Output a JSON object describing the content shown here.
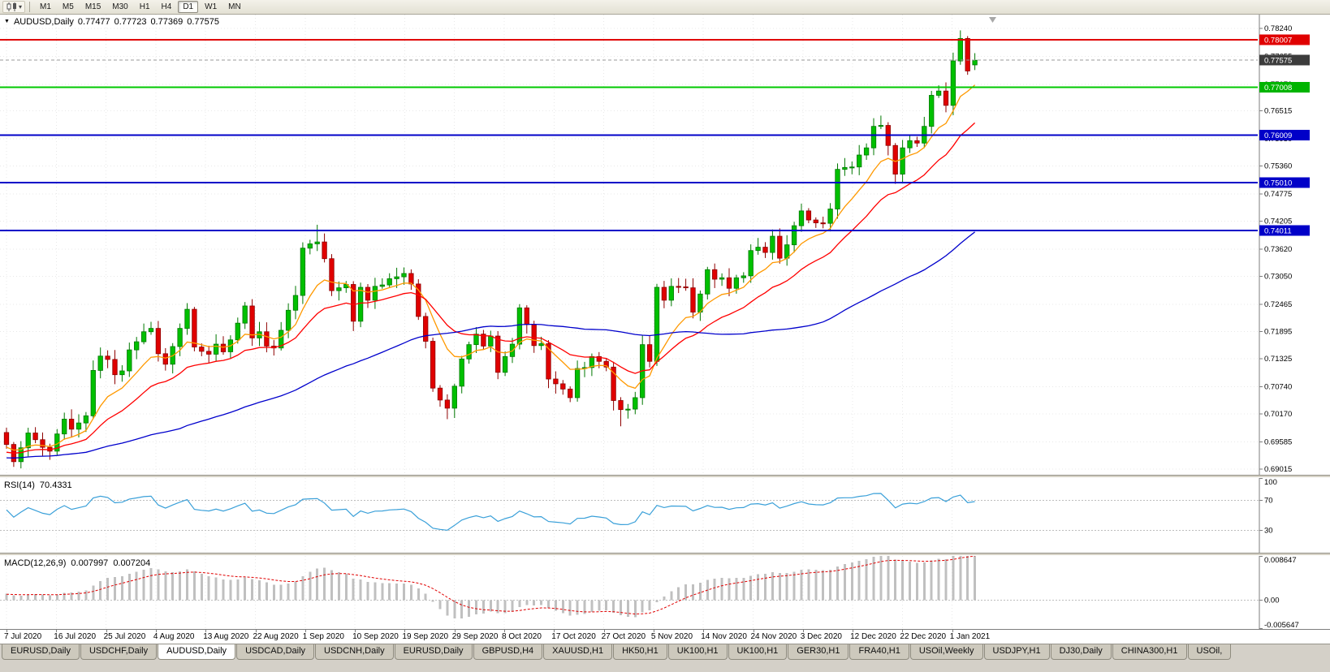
{
  "toolbar": {
    "timeframes": [
      "M1",
      "M5",
      "M15",
      "M30",
      "H1",
      "H4",
      "D1",
      "W1",
      "MN"
    ],
    "active": "D1"
  },
  "main_chart": {
    "symbol_title": "AUDUSD,Daily",
    "open": "0.77477",
    "high": "0.77723",
    "low": "0.77369",
    "close": "0.77575",
    "current_price": 0.77575,
    "price_axis_ticks": [
      "0.78240",
      "0.77655",
      "0.77070",
      "0.76515",
      "0.75930",
      "0.75360",
      "0.74775",
      "0.74205",
      "0.73620",
      "0.73050",
      "0.72465",
      "0.71895",
      "0.71325",
      "0.70740",
      "0.70170",
      "0.69585",
      "0.69015"
    ],
    "price_badges": [
      {
        "label": "0.78007",
        "price": 0.78007,
        "bg": "#e00000",
        "fg": "#ffffff",
        "name": "resistance-line-badge"
      },
      {
        "label": "0.77575",
        "price": 0.77575,
        "bg": "#3c3c3c",
        "fg": "#ffffff",
        "name": "current-price-badge"
      },
      {
        "label": "0.77008",
        "price": 0.77008,
        "bg": "#00b400",
        "fg": "#ffffff",
        "name": "support-line-badge"
      },
      {
        "label": "0.76009",
        "price": 0.76009,
        "bg": "#0000c8",
        "fg": "#ffffff",
        "name": "level-line-badge"
      },
      {
        "label": "0.75010",
        "price": 0.7501,
        "bg": "#0000c8",
        "fg": "#ffffff",
        "name": "level-line-badge"
      },
      {
        "label": "0.74011",
        "price": 0.74011,
        "bg": "#0000c8",
        "fg": "#ffffff",
        "name": "level-line-badge"
      }
    ],
    "hlines": [
      {
        "price": 0.78007,
        "color": "#e00000",
        "width": 2
      },
      {
        "price": 0.77008,
        "color": "#00c800",
        "width": 2
      },
      {
        "price": 0.76009,
        "color": "#0000c8",
        "width": 2
      },
      {
        "price": 0.7501,
        "color": "#0000c8",
        "width": 2
      },
      {
        "price": 0.74011,
        "color": "#0000c8",
        "width": 2
      }
    ]
  },
  "rsi_panel": {
    "label": "RSI(14)",
    "value": "70.4331",
    "axis_ticks": [
      "100",
      "70",
      "30"
    ],
    "levels": [
      70,
      30
    ],
    "line_color": "#3aa0d9"
  },
  "macd_panel": {
    "label": "MACD(12,26,9)",
    "main_value": "0.007997",
    "signal_value": "0.007204",
    "axis_ticks": [
      "0.008647",
      "0.00",
      "-0.005647"
    ],
    "scale_top": 0.008647,
    "scale_bottom": -0.005647,
    "bar_color": "#c0c0c0",
    "signal_color": "#e00000"
  },
  "date_axis": [
    "7 Jul 2020",
    "16 Jul 2020",
    "25 Jul 2020",
    "4 Aug 2020",
    "13 Aug 2020",
    "22 Aug 2020",
    "1 Sep 2020",
    "10 Sep 2020",
    "19 Sep 2020",
    "29 Sep 2020",
    "8 Oct 2020",
    "17 Oct 2020",
    "27 Oct 2020",
    "5 Nov 2020",
    "14 Nov 2020",
    "24 Nov 2020",
    "3 Dec 2020",
    "12 Dec 2020",
    "22 Dec 2020",
    "1 Jan 2021"
  ],
  "tabs": [
    {
      "label": "EURUSD,Daily",
      "active": false
    },
    {
      "label": "USDCHF,Daily",
      "active": false
    },
    {
      "label": "AUDUSD,Daily",
      "active": true
    },
    {
      "label": "USDCAD,Daily",
      "active": false
    },
    {
      "label": "USDCNH,Daily",
      "active": false
    },
    {
      "label": "EURUSD,Daily",
      "active": false
    },
    {
      "label": "GBPUSD,H4",
      "active": false
    },
    {
      "label": "XAUUSD,H1",
      "active": false
    },
    {
      "label": "HK50,H1",
      "active": false
    },
    {
      "label": "UK100,H1",
      "active": false
    },
    {
      "label": "UK100,H1",
      "active": false
    },
    {
      "label": "GER30,H1",
      "active": false
    },
    {
      "label": "FRA40,H1",
      "active": false
    },
    {
      "label": "USOil,Weekly",
      "active": false
    },
    {
      "label": "USDJPY,H1",
      "active": false
    },
    {
      "label": "DJ30,Daily",
      "active": false
    },
    {
      "label": "CHINA300,H1",
      "active": false
    },
    {
      "label": "USOil,",
      "active": false
    }
  ],
  "colors": {
    "grid": "#e8e8e8",
    "axis_line": "#7d7d7d",
    "level_dotted": "#bdbdbd"
  },
  "chart_data": {
    "type": "candlestick",
    "symbol": "AUDUSD",
    "timeframe": "Daily",
    "price_top": 0.7853,
    "price_bottom": 0.68895,
    "up_color": "#00c000",
    "up_border": "#007800",
    "down_color": "#e00000",
    "down_border": "#8e0000",
    "ma_overlays": [
      {
        "name": "ema-9",
        "type": "ema",
        "period": 9,
        "color": "#ff9900"
      },
      {
        "name": "ema-20",
        "type": "ema",
        "period": 20,
        "color": "#ff0000"
      },
      {
        "name": "sma-55",
        "type": "sma",
        "period": 55,
        "color": "#0000cc"
      }
    ],
    "closes": [
      0.6953,
      0.6917,
      0.6946,
      0.6977,
      0.6963,
      0.6947,
      0.6939,
      0.6975,
      0.7006,
      0.6985,
      0.6998,
      0.7013,
      0.7108,
      0.7138,
      0.7131,
      0.7099,
      0.7107,
      0.7151,
      0.7168,
      0.7189,
      0.7196,
      0.7143,
      0.7121,
      0.7158,
      0.7196,
      0.7236,
      0.7157,
      0.7148,
      0.7142,
      0.7163,
      0.7147,
      0.7172,
      0.7207,
      0.7243,
      0.7176,
      0.7189,
      0.7159,
      0.7155,
      0.7192,
      0.7234,
      0.7265,
      0.7364,
      0.7373,
      0.7377,
      0.7342,
      0.7275,
      0.7281,
      0.7288,
      0.7211,
      0.7282,
      0.7255,
      0.7284,
      0.7287,
      0.73,
      0.7304,
      0.7311,
      0.7289,
      0.7221,
      0.7169,
      0.7071,
      0.7046,
      0.7029,
      0.7075,
      0.7132,
      0.7162,
      0.7184,
      0.7159,
      0.718,
      0.7104,
      0.7137,
      0.7163,
      0.7239,
      0.7204,
      0.716,
      0.7164,
      0.709,
      0.708,
      0.7069,
      0.7051,
      0.7112,
      0.7114,
      0.7137,
      0.7127,
      0.7115,
      0.7045,
      0.7026,
      0.7027,
      0.7051,
      0.7162,
      0.7127,
      0.7282,
      0.7255,
      0.7284,
      0.7283,
      0.7281,
      0.723,
      0.7268,
      0.7319,
      0.7299,
      0.7302,
      0.728,
      0.7302,
      0.7306,
      0.7359,
      0.7366,
      0.7355,
      0.7389,
      0.7343,
      0.7371,
      0.7411,
      0.7442,
      0.7423,
      0.7417,
      0.7416,
      0.7446,
      0.7529,
      0.7533,
      0.7534,
      0.7559,
      0.7574,
      0.7619,
      0.7621,
      0.7579,
      0.7519,
      0.7574,
      0.7589,
      0.7584,
      0.7619,
      0.7684,
      0.7693,
      0.7663,
      0.7756,
      0.7803,
      0.7735,
      0.7758
    ],
    "ohlc_overrides": {
      "0": [
        0.6978,
        0.6988,
        0.6944,
        0.6953
      ],
      "1": [
        0.6953,
        0.6958,
        0.6906,
        0.6917
      ],
      "43": [
        0.7373,
        0.7413,
        0.7358,
        0.7377
      ],
      "61": [
        0.7046,
        0.7058,
        0.7006,
        0.7029
      ],
      "85": [
        0.7045,
        0.7052,
        0.6991,
        0.7026
      ],
      "132": [
        0.7756,
        0.782,
        0.7748,
        0.7803
      ],
      "133": [
        0.7803,
        0.7808,
        0.7727,
        0.7735
      ],
      "134": [
        0.77477,
        0.77723,
        0.77369,
        0.77575
      ]
    }
  }
}
